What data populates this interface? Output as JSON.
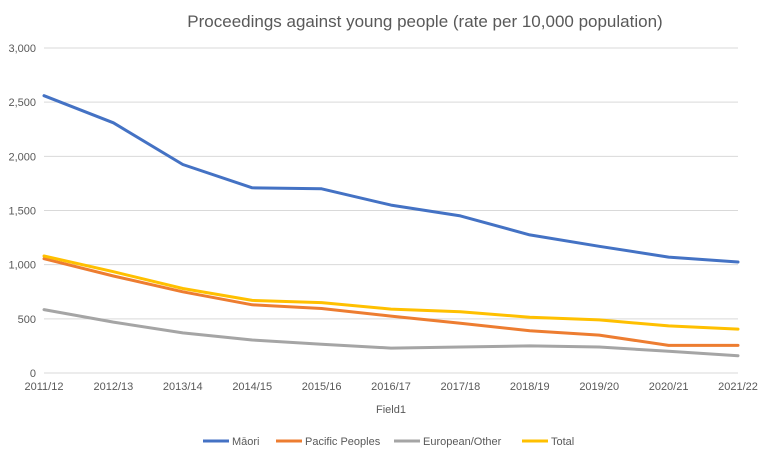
{
  "chart_data": {
    "type": "line",
    "title": "Proceedings against young people  (rate per 10,000 population)",
    "xlabel": "Field1",
    "ylabel": "",
    "categories": [
      "2011/12",
      "2012/13",
      "2013/14",
      "2014/15",
      "2015/16",
      "2016/17",
      "2017/18",
      "2018/19",
      "2019/20",
      "2020/21",
      "2021/22"
    ],
    "ylim": [
      0,
      3000
    ],
    "yticks": [
      0,
      500,
      1000,
      1500,
      2000,
      2500,
      3000
    ],
    "ytick_labels": [
      "0",
      "500",
      "1,000",
      "1,500",
      "2,000",
      "2,500",
      "3,000"
    ],
    "grid": true,
    "legend_position": "bottom",
    "series": [
      {
        "name": "Māori",
        "color": "#4472C4",
        "values": [
          2560,
          2310,
          1925,
          1710,
          1700,
          1550,
          1450,
          1275,
          1170,
          1070,
          1025
        ]
      },
      {
        "name": "Pacific Peoples",
        "color": "#ED7D31",
        "values": [
          1055,
          895,
          750,
          630,
          595,
          525,
          460,
          390,
          350,
          255,
          255
        ]
      },
      {
        "name": "European/Other",
        "color": "#A5A5A5",
        "values": [
          585,
          470,
          370,
          305,
          265,
          230,
          240,
          250,
          240,
          200,
          160
        ]
      },
      {
        "name": "Total",
        "color": "#FFC000",
        "values": [
          1080,
          935,
          780,
          670,
          650,
          590,
          565,
          515,
          490,
          435,
          405
        ]
      }
    ]
  }
}
